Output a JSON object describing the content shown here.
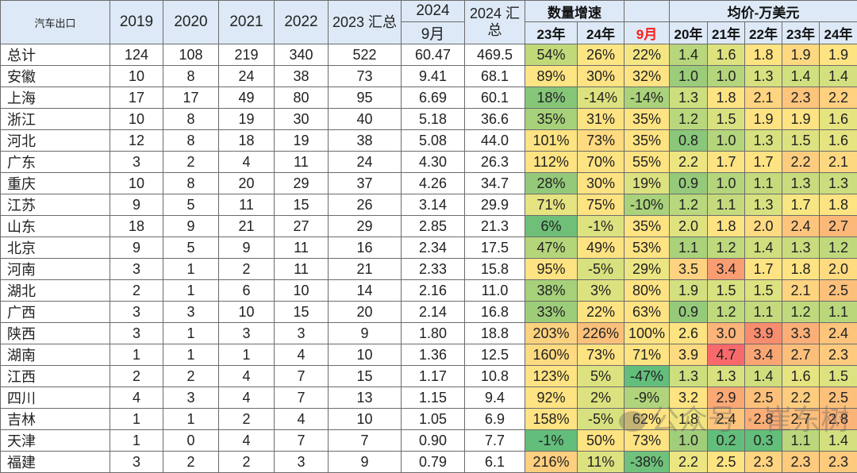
{
  "header": {
    "corner": "汽车出口",
    "years": [
      "2019",
      "2020",
      "2021",
      "2022"
    ],
    "total_2023": "2023 汇总",
    "y2024": "2024",
    "y2024_month": "9月",
    "total_2024": "2024 汇总",
    "growth_group": "数量增速",
    "growth_cols": [
      "23年",
      "24年",
      "9月"
    ],
    "price_group": "均价-万美元",
    "price_cols": [
      "20年",
      "21年",
      "22年",
      "23年",
      "24年"
    ]
  },
  "rows": [
    {
      "name": "总计",
      "v": [
        "124",
        "108",
        "219",
        "340",
        "522",
        "60.47",
        "469.5"
      ],
      "g": [
        "54%",
        "26%",
        "22%"
      ],
      "p": [
        "1.4",
        "1.6",
        "1.8",
        "1.9",
        "1.9"
      ],
      "gc": [
        "#c2d97a",
        "#fde583",
        "#f4e683"
      ],
      "pc": [
        "#b8d67c",
        "#dde27f",
        "#fee382",
        "#fed880",
        "#fee382"
      ]
    },
    {
      "name": "安徽",
      "v": [
        "10",
        "8",
        "24",
        "38",
        "73",
        "9.41",
        "68.1"
      ],
      "g": [
        "89%",
        "30%",
        "32%"
      ],
      "p": [
        "1.0",
        "1.0",
        "1.3",
        "1.4",
        "1.4"
      ],
      "gc": [
        "#fde583",
        "#fee382",
        "#fee382"
      ],
      "pc": [
        "#9bcc7a",
        "#b4d57b",
        "#d8e17f",
        "#d1e07e",
        "#d4e07f"
      ]
    },
    {
      "name": "上海",
      "v": [
        "17",
        "17",
        "49",
        "80",
        "95",
        "6.69",
        "60.1"
      ],
      "g": [
        "18%",
        "-14%",
        "-14%"
      ],
      "p": [
        "1.3",
        "1.8",
        "2.1",
        "2.3",
        "2.2"
      ],
      "gc": [
        "#86c679",
        "#dde280",
        "#a9d27b"
      ],
      "pc": [
        "#cdde7e",
        "#fee382",
        "#fed480",
        "#fdc47c",
        "#fed07f"
      ]
    },
    {
      "name": "浙江",
      "v": [
        "10",
        "8",
        "19",
        "30",
        "40",
        "5.18",
        "36.6"
      ],
      "g": [
        "35%",
        "31%",
        "35%"
      ],
      "p": [
        "1.2",
        "1.5",
        "1.9",
        "1.9",
        "1.6"
      ],
      "gc": [
        "#a6d17a",
        "#fee382",
        "#fee382"
      ],
      "pc": [
        "#b9d77c",
        "#d8e17f",
        "#fee382",
        "#fee382",
        "#e6e381"
      ]
    },
    {
      "name": "河北",
      "v": [
        "12",
        "8",
        "18",
        "19",
        "38",
        "5.08",
        "44.0"
      ],
      "g": [
        "101%",
        "73%",
        "35%"
      ],
      "p": [
        "0.8",
        "1.0",
        "1.3",
        "1.5",
        "1.6"
      ],
      "gc": [
        "#fee382",
        "#feda80",
        "#fee382"
      ],
      "pc": [
        "#8ac77a",
        "#b4d57b",
        "#d8e17f",
        "#dde280",
        "#e6e381"
      ]
    },
    {
      "name": "广东",
      "v": [
        "3",
        "2",
        "4",
        "11",
        "24",
        "4.30",
        "26.3"
      ],
      "g": [
        "112%",
        "70%",
        "55%"
      ],
      "p": [
        "2.2",
        "1.7",
        "1.7",
        "2.2",
        "2.1"
      ],
      "gc": [
        "#fee382",
        "#fee382",
        "#fee382"
      ],
      "pc": [
        "#ece582",
        "#fee382",
        "#fee382",
        "#fdcc7e",
        "#fed880"
      ]
    },
    {
      "name": "重庆",
      "v": [
        "10",
        "8",
        "20",
        "29",
        "37",
        "4.26",
        "34.7"
      ],
      "g": [
        "28%",
        "30%",
        "19%"
      ],
      "p": [
        "0.9",
        "1.0",
        "1.1",
        "1.3",
        "1.3"
      ],
      "gc": [
        "#94c97a",
        "#fee382",
        "#dde280"
      ],
      "pc": [
        "#95ca7a",
        "#b4d57b",
        "#c4da7d",
        "#c8dc7e",
        "#cbdd7e"
      ]
    },
    {
      "name": "江苏",
      "v": [
        "9",
        "5",
        "11",
        "15",
        "26",
        "3.14",
        "29.9"
      ],
      "g": [
        "71%",
        "75%",
        "-10%"
      ],
      "p": [
        "1.2",
        "1.1",
        "1.3",
        "1.7",
        "1.8"
      ],
      "gc": [
        "#e6e381",
        "#fee382",
        "#a9d27b"
      ],
      "pc": [
        "#b9d77c",
        "#c4da7d",
        "#d8e17f",
        "#f7e682",
        "#fee382"
      ]
    },
    {
      "name": "山东",
      "v": [
        "18",
        "9",
        "21",
        "27",
        "29",
        "2.85",
        "21.3"
      ],
      "g": [
        "6%",
        "-1%",
        "35%"
      ],
      "p": [
        "2.0",
        "1.8",
        "2.0",
        "2.4",
        "2.7"
      ],
      "gc": [
        "#6fbf78",
        "#dde280",
        "#fee382"
      ],
      "pc": [
        "#e0e280",
        "#fee382",
        "#fedb81",
        "#fdc47c",
        "#fbb878"
      ]
    },
    {
      "name": "北京",
      "v": [
        "9",
        "5",
        "9",
        "11",
        "16",
        "2.34",
        "17.5"
      ],
      "g": [
        "47%",
        "49%",
        "53%"
      ],
      "p": [
        "1.1",
        "1.2",
        "1.4",
        "1.3",
        "1.2"
      ],
      "gc": [
        "#b5d57b",
        "#fee382",
        "#fee382"
      ],
      "pc": [
        "#aad27b",
        "#bfd97d",
        "#d1de7e",
        "#c8dc7e",
        "#c0d97d"
      ]
    },
    {
      "name": "河南",
      "v": [
        "3",
        "1",
        "2",
        "11",
        "21",
        "2.33",
        "15.8"
      ],
      "g": [
        "95%",
        "-5%",
        "29%"
      ],
      "p": [
        "3.5",
        "3.4",
        "1.7",
        "1.8",
        "2.0"
      ],
      "gc": [
        "#fee382",
        "#d8e17f",
        "#ebe582"
      ],
      "pc": [
        "#fed280",
        "#f99d72",
        "#fee382",
        "#fee382",
        "#fedb81"
      ]
    },
    {
      "name": "湖北",
      "v": [
        "2",
        "1",
        "6",
        "10",
        "14",
        "2.16",
        "11.0"
      ],
      "g": [
        "38%",
        "3%",
        "80%"
      ],
      "p": [
        "1.9",
        "1.5",
        "1.5",
        "2.1",
        "2.5"
      ],
      "gc": [
        "#a6d17a",
        "#dde280",
        "#fee382"
      ],
      "pc": [
        "#d4e07f",
        "#d8e17f",
        "#dde280",
        "#fed480",
        "#fcc07b"
      ]
    },
    {
      "name": "广西",
      "v": [
        "3",
        "3",
        "10",
        "15",
        "20",
        "2.14",
        "16.8"
      ],
      "g": [
        "33%",
        "22%",
        "63%"
      ],
      "p": [
        "0.9",
        "1.2",
        "1.1",
        "1.2",
        "1.1"
      ],
      "gc": [
        "#9ecd7a",
        "#fee382",
        "#fee382"
      ],
      "pc": [
        "#95ca7a",
        "#bfd97d",
        "#c4da7d",
        "#c0d97d",
        "#bad77c"
      ]
    },
    {
      "name": "陕西",
      "v": [
        "3",
        "1",
        "3",
        "3",
        "9",
        "1.80",
        "18.8"
      ],
      "g": [
        "203%",
        "226%",
        "100%"
      ],
      "p": [
        "2.6",
        "3.0",
        "3.9",
        "3.3",
        "2.4"
      ],
      "gc": [
        "#fdd27f",
        "#fcc07b",
        "#fee382"
      ],
      "pc": [
        "#fee382",
        "#fbb479",
        "#f88c6f",
        "#fbaf77",
        "#fdc47c"
      ]
    },
    {
      "name": "湖南",
      "v": [
        "1",
        "1",
        "1",
        "4",
        "10",
        "1.36",
        "12.5"
      ],
      "g": [
        "160%",
        "73%",
        "71%"
      ],
      "p": [
        "3.9",
        "4.7",
        "3.4",
        "2.7",
        "2.3"
      ],
      "gc": [
        "#feda80",
        "#fee382",
        "#fee382"
      ],
      "pc": [
        "#fedb81",
        "#f8696b",
        "#faa574",
        "#fbbf7b",
        "#fdca7e"
      ]
    },
    {
      "name": "江西",
      "v": [
        "2",
        "2",
        "4",
        "7",
        "15",
        "1.17",
        "10.8"
      ],
      "g": [
        "123%",
        "5%",
        "-47%"
      ],
      "p": [
        "1.3",
        "1.3",
        "1.4",
        "1.6",
        "1.5"
      ],
      "gc": [
        "#fee382",
        "#dde280",
        "#63be7b"
      ],
      "pc": [
        "#cdde7e",
        "#d8e17f",
        "#d1de7e",
        "#e6e381",
        "#dde280"
      ]
    },
    {
      "name": "四川",
      "v": [
        "4",
        "3",
        "4",
        "7",
        "13",
        "1.15",
        "9.4"
      ],
      "g": [
        "92%",
        "2%",
        "-9%"
      ],
      "p": [
        "3.2",
        "2.9",
        "2.5",
        "2.2",
        "2.5"
      ],
      "gc": [
        "#fee382",
        "#dde280",
        "#b0d47b"
      ],
      "pc": [
        "#fee382",
        "#faa975",
        "#fdc07b",
        "#fdcc7e",
        "#fcc07b"
      ]
    },
    {
      "name": "吉林",
      "v": [
        "1",
        "1",
        "2",
        "4",
        "10",
        "1.05",
        "6.9"
      ],
      "g": [
        "158%",
        "-5%",
        "62%"
      ],
      "p": [
        "1.8",
        "2.4",
        "2.8",
        "2.7",
        "2.8"
      ],
      "gc": [
        "#fee382",
        "#d8e17f",
        "#fee382"
      ],
      "pc": [
        "#f1e582",
        "#fdc47c",
        "#fbae77",
        "#fbbf7b",
        "#fbb478"
      ]
    },
    {
      "name": "天津",
      "v": [
        "1",
        "0",
        "4",
        "7",
        "7",
        "0.90",
        "7.7"
      ],
      "g": [
        "-1%",
        "50%",
        "73%"
      ],
      "p": [
        "1.0",
        "0.2",
        "0.3",
        "1.1",
        "1.4"
      ],
      "gc": [
        "#63be7b",
        "#fee382",
        "#fee382"
      ],
      "pc": [
        "#a1ce7b",
        "#63be7b",
        "#63be7b",
        "#bad77c",
        "#d4e07f"
      ]
    },
    {
      "name": "福建",
      "v": [
        "3",
        "2",
        "2",
        "3",
        "9",
        "0.79",
        "6.1"
      ],
      "g": [
        "216%",
        "11%",
        "-38%"
      ],
      "p": [
        "2.2",
        "2.5",
        "2.3",
        "2.3",
        "2.3"
      ],
      "gc": [
        "#fdcf7f",
        "#dde280",
        "#70c17b"
      ],
      "pc": [
        "#ece582",
        "#fee382",
        "#fed480",
        "#fdca7e",
        "#fdca7e"
      ]
    }
  ],
  "watermark": "公众号 · 崔东树"
}
